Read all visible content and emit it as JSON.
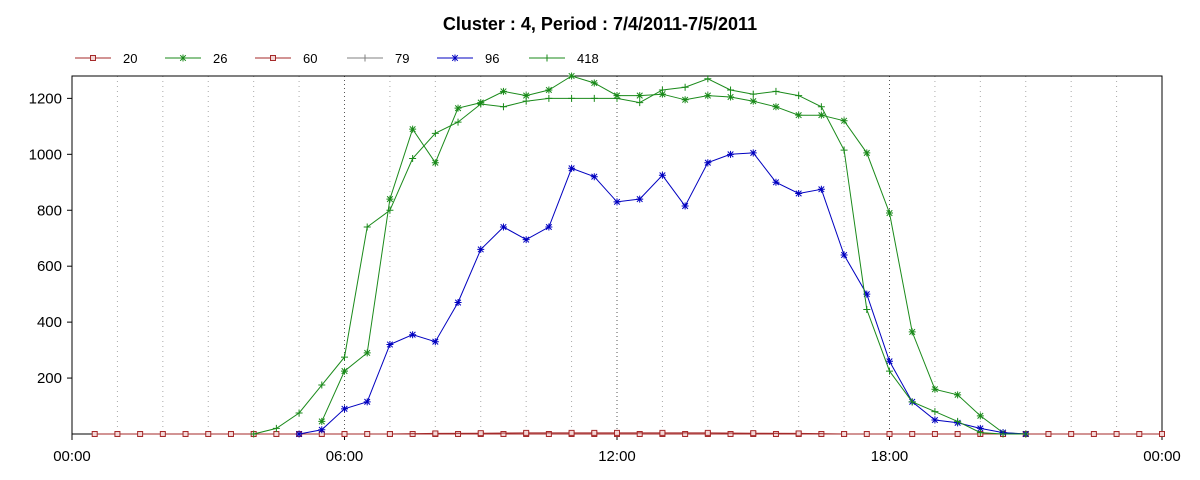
{
  "chart_data": {
    "type": "line",
    "title": "Cluster : 4, Period : 7/4/2011-7/5/2011",
    "xlabel": "",
    "ylabel": "",
    "xlim": [
      0,
      24
    ],
    "ylim": [
      0,
      1280
    ],
    "x_ticks": [
      {
        "value": 0,
        "label": "00:00"
      },
      {
        "value": 6,
        "label": "06:00"
      },
      {
        "value": 12,
        "label": "12:00"
      },
      {
        "value": 18,
        "label": "18:00"
      },
      {
        "value": 24,
        "label": "00:00"
      }
    ],
    "y_ticks": [
      200,
      400,
      600,
      800,
      1000,
      1200
    ],
    "grid": "vertical dotted",
    "legend_position": "top-left",
    "series": [
      {
        "name": "20",
        "color": "#a52a2a",
        "marker": "square",
        "x": [
          0.5,
          1,
          1.5,
          2,
          2.5,
          3,
          3.5,
          4,
          4.5,
          5,
          5.5,
          6,
          6.5,
          7,
          7.5,
          8,
          8.5,
          9,
          9.5,
          10,
          10.5,
          11,
          11.5,
          12,
          12.5,
          13,
          13.5,
          14,
          14.5,
          15,
          15.5,
          16,
          16.5,
          17,
          17.5,
          18,
          18.5,
          19,
          19.5,
          20,
          20.5,
          21,
          21.5,
          22,
          22.5,
          23,
          23.5,
          24
        ],
        "y": [
          0,
          0,
          0,
          0,
          0,
          0,
          0,
          0,
          0,
          0,
          0,
          0,
          0,
          0,
          0,
          0,
          0,
          0,
          0,
          0,
          0,
          0,
          0,
          0,
          0,
          0,
          0,
          0,
          0,
          0,
          0,
          0,
          0,
          0,
          0,
          0,
          0,
          0,
          0,
          0,
          0,
          0,
          0,
          0,
          0,
          0,
          0,
          0
        ]
      },
      {
        "name": "26",
        "color": "#1a8a1a",
        "marker": "star",
        "x": [
          5.5,
          6,
          6.5,
          7,
          7.5,
          8,
          8.5,
          9,
          9.5,
          10,
          10.5,
          11,
          11.5,
          12,
          12.5,
          13,
          13.5,
          14,
          14.5,
          15,
          15.5,
          16,
          16.5,
          17,
          17.5,
          18,
          18.5,
          19,
          19.5,
          20,
          20.5,
          21
        ],
        "y": [
          45,
          225,
          290,
          840,
          1090,
          970,
          1165,
          1185,
          1225,
          1210,
          1230,
          1280,
          1255,
          1210,
          1210,
          1215,
          1195,
          1210,
          1205,
          1190,
          1170,
          1140,
          1140,
          1120,
          1005,
          790,
          365,
          160,
          140,
          65,
          5,
          0
        ]
      },
      {
        "name": "60",
        "color": "#a52a2a",
        "marker": "square",
        "x": [
          7,
          8,
          9,
          10,
          11,
          11.5,
          12,
          13,
          14,
          15,
          16,
          17
        ],
        "y": [
          0,
          2,
          3,
          4,
          4,
          4,
          4,
          4,
          4,
          3,
          2,
          0
        ]
      },
      {
        "name": "79",
        "color": "#808080",
        "marker": "plus",
        "x": [],
        "y": []
      },
      {
        "name": "96",
        "color": "#0000c0",
        "marker": "star",
        "x": [
          5,
          5.5,
          6,
          6.5,
          7,
          7.5,
          8,
          8.5,
          9,
          9.5,
          10,
          10.5,
          11,
          11.5,
          12,
          12.5,
          13,
          13.5,
          14,
          14.5,
          15,
          15.5,
          16,
          16.5,
          17,
          17.5,
          18,
          18.5,
          19,
          19.5,
          20,
          20.5,
          21
        ],
        "y": [
          0,
          15,
          90,
          115,
          320,
          355,
          330,
          470,
          660,
          740,
          695,
          740,
          950,
          920,
          830,
          840,
          925,
          815,
          970,
          1000,
          1005,
          900,
          860,
          875,
          640,
          500,
          260,
          115,
          50,
          40,
          20,
          5,
          0
        ]
      },
      {
        "name": "418",
        "color": "#1a8a1a",
        "marker": "plus",
        "x": [
          4,
          4.5,
          5,
          5.5,
          6,
          6.5,
          7,
          7.5,
          8,
          8.5,
          9,
          9.5,
          10,
          10.5,
          11,
          11.5,
          12,
          12.5,
          13,
          13.5,
          14,
          14.5,
          15,
          15.5,
          16,
          16.5,
          17,
          17.5,
          18,
          18.5,
          19,
          19.5,
          20,
          20.5,
          21
        ],
        "y": [
          0,
          20,
          75,
          175,
          275,
          740,
          800,
          985,
          1075,
          1115,
          1180,
          1170,
          1190,
          1200,
          1200,
          1200,
          1200,
          1185,
          1230,
          1240,
          1270,
          1230,
          1215,
          1225,
          1210,
          1170,
          1015,
          445,
          225,
          115,
          80,
          45,
          5,
          0,
          0
        ]
      }
    ]
  }
}
